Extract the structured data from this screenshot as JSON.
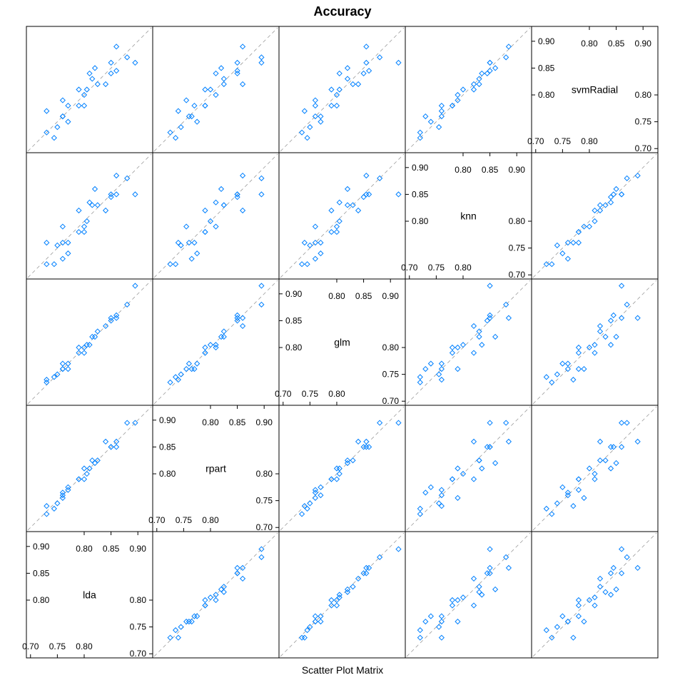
{
  "chart_data": {
    "type": "scatter",
    "title": "Accuracy",
    "xlabel": "Scatter Plot Matrix",
    "variables": [
      "lda",
      "rpart",
      "glm",
      "knn",
      "svmRadial"
    ],
    "axis_range": [
      0.695,
      0.925
    ],
    "tick_labels_low": [
      "0.70",
      "0.75",
      "0.80"
    ],
    "tick_labels_high": [
      "0.80",
      "0.85",
      "0.90"
    ],
    "diagonal_reference_line": true,
    "point_color": "#0080ff",
    "data": {
      "lda": [
        0.805,
        0.77,
        0.744,
        0.88,
        0.86,
        0.85,
        0.81,
        0.82,
        0.79,
        0.76,
        0.73,
        0.84,
        0.815,
        0.77,
        0.8,
        0.79,
        0.76,
        0.825,
        0.85,
        0.76,
        0.8,
        0.73,
        0.75,
        0.895,
        0.86
      ],
      "rpart": [
        0.8,
        0.77,
        0.735,
        0.895,
        0.85,
        0.85,
        0.81,
        0.82,
        0.79,
        0.765,
        0.74,
        0.86,
        0.825,
        0.775,
        0.79,
        0.79,
        0.76,
        0.825,
        0.85,
        0.755,
        0.81,
        0.725,
        0.745,
        0.895,
        0.86
      ],
      "glm": [
        0.805,
        0.76,
        0.745,
        0.88,
        0.86,
        0.85,
        0.805,
        0.82,
        0.8,
        0.76,
        0.74,
        0.84,
        0.82,
        0.77,
        0.79,
        0.79,
        0.77,
        0.83,
        0.855,
        0.76,
        0.8,
        0.735,
        0.75,
        0.915,
        0.855
      ],
      "knn": [
        0.8,
        0.76,
        0.72,
        0.88,
        0.85,
        0.845,
        0.835,
        0.86,
        0.78,
        0.73,
        0.76,
        0.82,
        0.83,
        0.74,
        0.78,
        0.82,
        0.76,
        0.83,
        0.85,
        0.79,
        0.79,
        0.72,
        0.755,
        0.85,
        0.885
      ],
      "svmRadial": [
        0.81,
        0.78,
        0.72,
        0.87,
        0.845,
        0.84,
        0.84,
        0.85,
        0.78,
        0.76,
        0.77,
        0.82,
        0.83,
        0.75,
        0.78,
        0.81,
        0.76,
        0.82,
        0.86,
        0.79,
        0.8,
        0.73,
        0.74,
        0.86,
        0.89
      ]
    }
  }
}
